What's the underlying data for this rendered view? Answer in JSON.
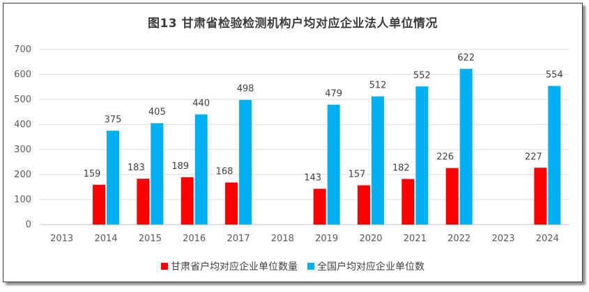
{
  "title": "图13 甘肃省检验检测机构户均对应企业法人单位情况",
  "chart_data": {
    "type": "bar",
    "title": "图13 甘肃省检验检测机构户均对应企业法人单位情况",
    "xlabel": "",
    "ylabel": "",
    "categories": [
      "2013",
      "2014",
      "2015",
      "2016",
      "2017",
      "2018",
      "2019",
      "2020",
      "2021",
      "2022",
      "2023",
      "2024"
    ],
    "ylim": [
      0,
      700
    ],
    "yticks": [
      0,
      100,
      200,
      300,
      400,
      500,
      600,
      700
    ],
    "grid": true,
    "legend_position": "bottom",
    "series": [
      {
        "name": "甘肃省户均对应企业单位数量",
        "color": "#ff0000",
        "values": [
          null,
          159,
          183,
          189,
          168,
          null,
          143,
          157,
          182,
          226,
          null,
          227
        ]
      },
      {
        "name": "全国户均对应企业单位数",
        "color": "#00b0f0",
        "values": [
          null,
          375,
          405,
          440,
          498,
          null,
          479,
          512,
          552,
          622,
          null,
          554
        ]
      }
    ]
  }
}
